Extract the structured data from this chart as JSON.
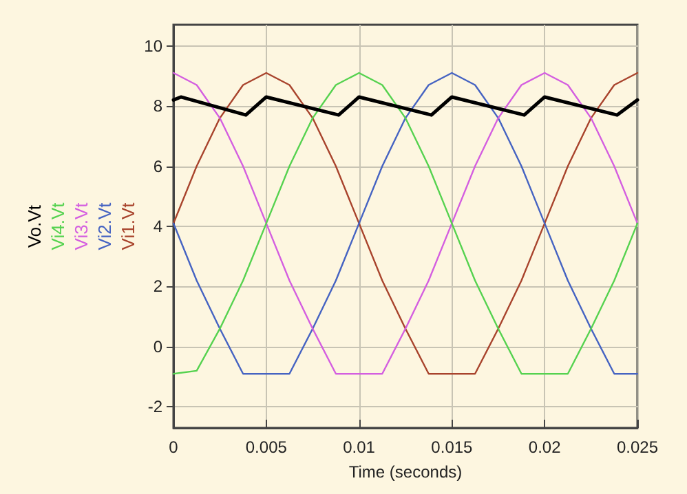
{
  "chart_data": {
    "type": "line",
    "xlabel": "Time (seconds)",
    "x": [
      0,
      0.00125,
      0.0025,
      0.00375,
      0.005,
      0.00625,
      0.0075,
      0.00875,
      0.01,
      0.01125,
      0.0125,
      0.01375,
      0.015,
      0.01625,
      0.0175,
      0.01875,
      0.02,
      0.02125,
      0.0225,
      0.02375,
      0.025
    ],
    "series": [
      {
        "name": "Vi1.Vt",
        "color": "#a8432c",
        "values": [
          4.1,
          6.0,
          7.6,
          8.7,
          9.1,
          8.7,
          7.6,
          6.0,
          4.1,
          2.2,
          0.6,
          -0.9,
          -0.9,
          -0.9,
          0.6,
          2.2,
          4.1,
          6.0,
          7.6,
          8.7,
          9.1
        ]
      },
      {
        "name": "Vi2.Vt",
        "color": "#4563c2",
        "values": [
          4.1,
          2.2,
          0.6,
          -0.9,
          -0.9,
          -0.9,
          0.6,
          2.2,
          4.1,
          6.0,
          7.6,
          8.7,
          9.1,
          8.7,
          7.6,
          6.0,
          4.1,
          2.2,
          0.6,
          -0.9,
          -0.9
        ]
      },
      {
        "name": "Vi3.Vt",
        "color": "#d45ee0",
        "values": [
          9.1,
          8.7,
          7.6,
          6.0,
          4.1,
          2.2,
          0.6,
          -0.9,
          -0.9,
          -0.9,
          0.6,
          2.2,
          4.1,
          6.0,
          7.6,
          8.7,
          9.1,
          8.7,
          7.6,
          6.0,
          4.1
        ]
      },
      {
        "name": "Vi4.Vt",
        "color": "#55d24f",
        "values": [
          -0.9,
          -0.8,
          0.6,
          2.2,
          4.1,
          6.0,
          7.6,
          8.7,
          9.1,
          8.7,
          7.6,
          6.0,
          4.1,
          2.2,
          0.6,
          -0.9,
          -0.9,
          -0.9,
          0.6,
          2.2,
          4.1
        ]
      },
      {
        "name": "Vo.Vt",
        "color": "#000000",
        "x": [
          0,
          0.0004,
          0.0039,
          0.005,
          0.0089,
          0.01,
          0.0139,
          0.015,
          0.0189,
          0.02,
          0.0239,
          0.025
        ],
        "values": [
          8.2,
          8.3,
          7.7,
          8.3,
          7.7,
          8.3,
          7.7,
          8.3,
          7.7,
          8.3,
          7.7,
          8.2
        ]
      }
    ],
    "xlim": [
      0,
      0.025
    ],
    "xticks": [
      0,
      0.005,
      0.01,
      0.015,
      0.02,
      0.025
    ],
    "ylim": [
      -2.7,
      10.7
    ],
    "yticks": [
      -2,
      0,
      2,
      4,
      6,
      8,
      10
    ],
    "grid": true,
    "legend": "left",
    "marker": "none",
    "line_style": "solid"
  }
}
